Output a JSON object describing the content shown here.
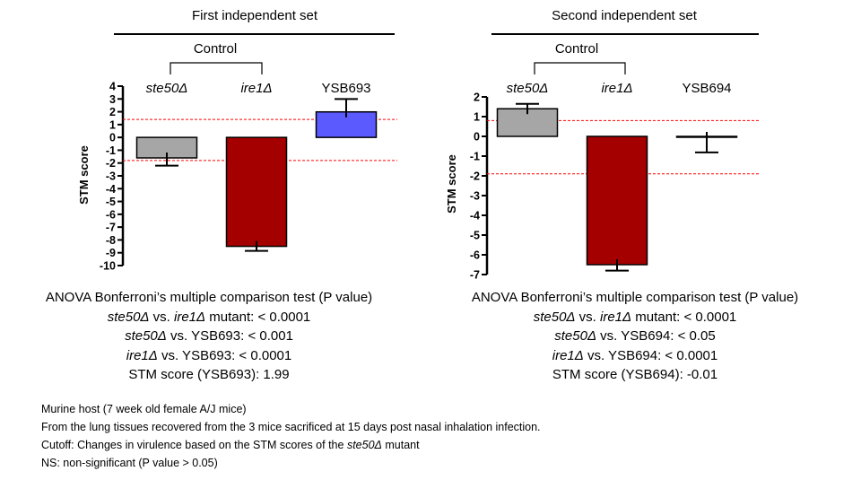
{
  "chart_data": [
    {
      "type": "bar",
      "title": "First independent set",
      "bracket_label": "Control",
      "ylabel": "STM score",
      "ylim": [
        -10,
        4
      ],
      "yticks": [
        "4",
        "3",
        "2",
        "1",
        "0",
        "-1",
        "-2",
        "-3",
        "-4",
        "-5",
        "-6",
        "-7",
        "-8",
        "-9",
        "-10"
      ],
      "categories": [
        "ste50Δ",
        "ire1Δ",
        "YSB693"
      ],
      "category_italic": [
        true,
        true,
        false
      ],
      "values": [
        -1.6,
        -8.5,
        1.99
      ],
      "error": [
        0.6,
        0.35,
        1.0
      ],
      "colors": [
        "#a6a6a6",
        "#a50000",
        "#5a5aff"
      ],
      "cutoff_lines": [
        1.4,
        -1.8
      ],
      "cutoff_color": "#ff0000"
    },
    {
      "type": "bar",
      "title": "Second independent set",
      "bracket_label": "Control",
      "ylabel": "STM score",
      "ylim": [
        -7,
        2
      ],
      "yticks": [
        "2",
        "1",
        "0",
        "-1",
        "-2",
        "-3",
        "-4",
        "-5",
        "-6",
        "-7"
      ],
      "categories": [
        "ste50Δ",
        "ire1Δ",
        "YSB694"
      ],
      "category_italic": [
        true,
        true,
        false
      ],
      "values": [
        1.4,
        -6.5,
        -0.01
      ],
      "error": [
        0.25,
        0.3,
        0.8
      ],
      "colors": [
        "#a6a6a6",
        "#a50000",
        "#ffffff"
      ],
      "cutoff_lines": [
        0.8,
        -1.9
      ],
      "cutoff_color": "#ff0000"
    }
  ],
  "stats_left": {
    "heading": "ANOVA Bonferroni’s multiple comparison test (P value)",
    "line1_a": "ste50Δ",
    "line1_b": " vs. ",
    "line1_c": "ire1Δ",
    "line1_d": " mutant: < 0.0001",
    "line2_a": "ste50Δ",
    "line2_b": " vs. YSB693: < 0.001",
    "line3_a": "ire1Δ",
    "line3_b": " vs. YSB693: < 0.0001",
    "line4": "STM score (YSB693): 1.99"
  },
  "stats_right": {
    "heading": "ANOVA Bonferroni’s multiple comparison test (P value)",
    "line1_a": "ste50Δ",
    "line1_b": " vs. ",
    "line1_c": "ire1Δ",
    "line1_d": " mutant:  < 0.0001",
    "line2_a": "ste50Δ",
    "line2_b": " vs. YSB694: < 0.05",
    "line3_a": "ire1Δ",
    "line3_b": " vs. YSB694: < 0.0001",
    "line4": "STM score (YSB694): -0.01"
  },
  "footnotes": {
    "line1": "Murine host (7 week old female A/J mice)",
    "line2": "From the lung tissues recovered from the 3 mice sacrificed at 15 days post nasal inhalation infection.",
    "line3_a": "Cutoff: Changes in virulence based on the STM scores of the ",
    "line3_b": "ste50Δ",
    "line3_c": " mutant",
    "line4": "NS: non-significant (P value > 0.05)"
  }
}
